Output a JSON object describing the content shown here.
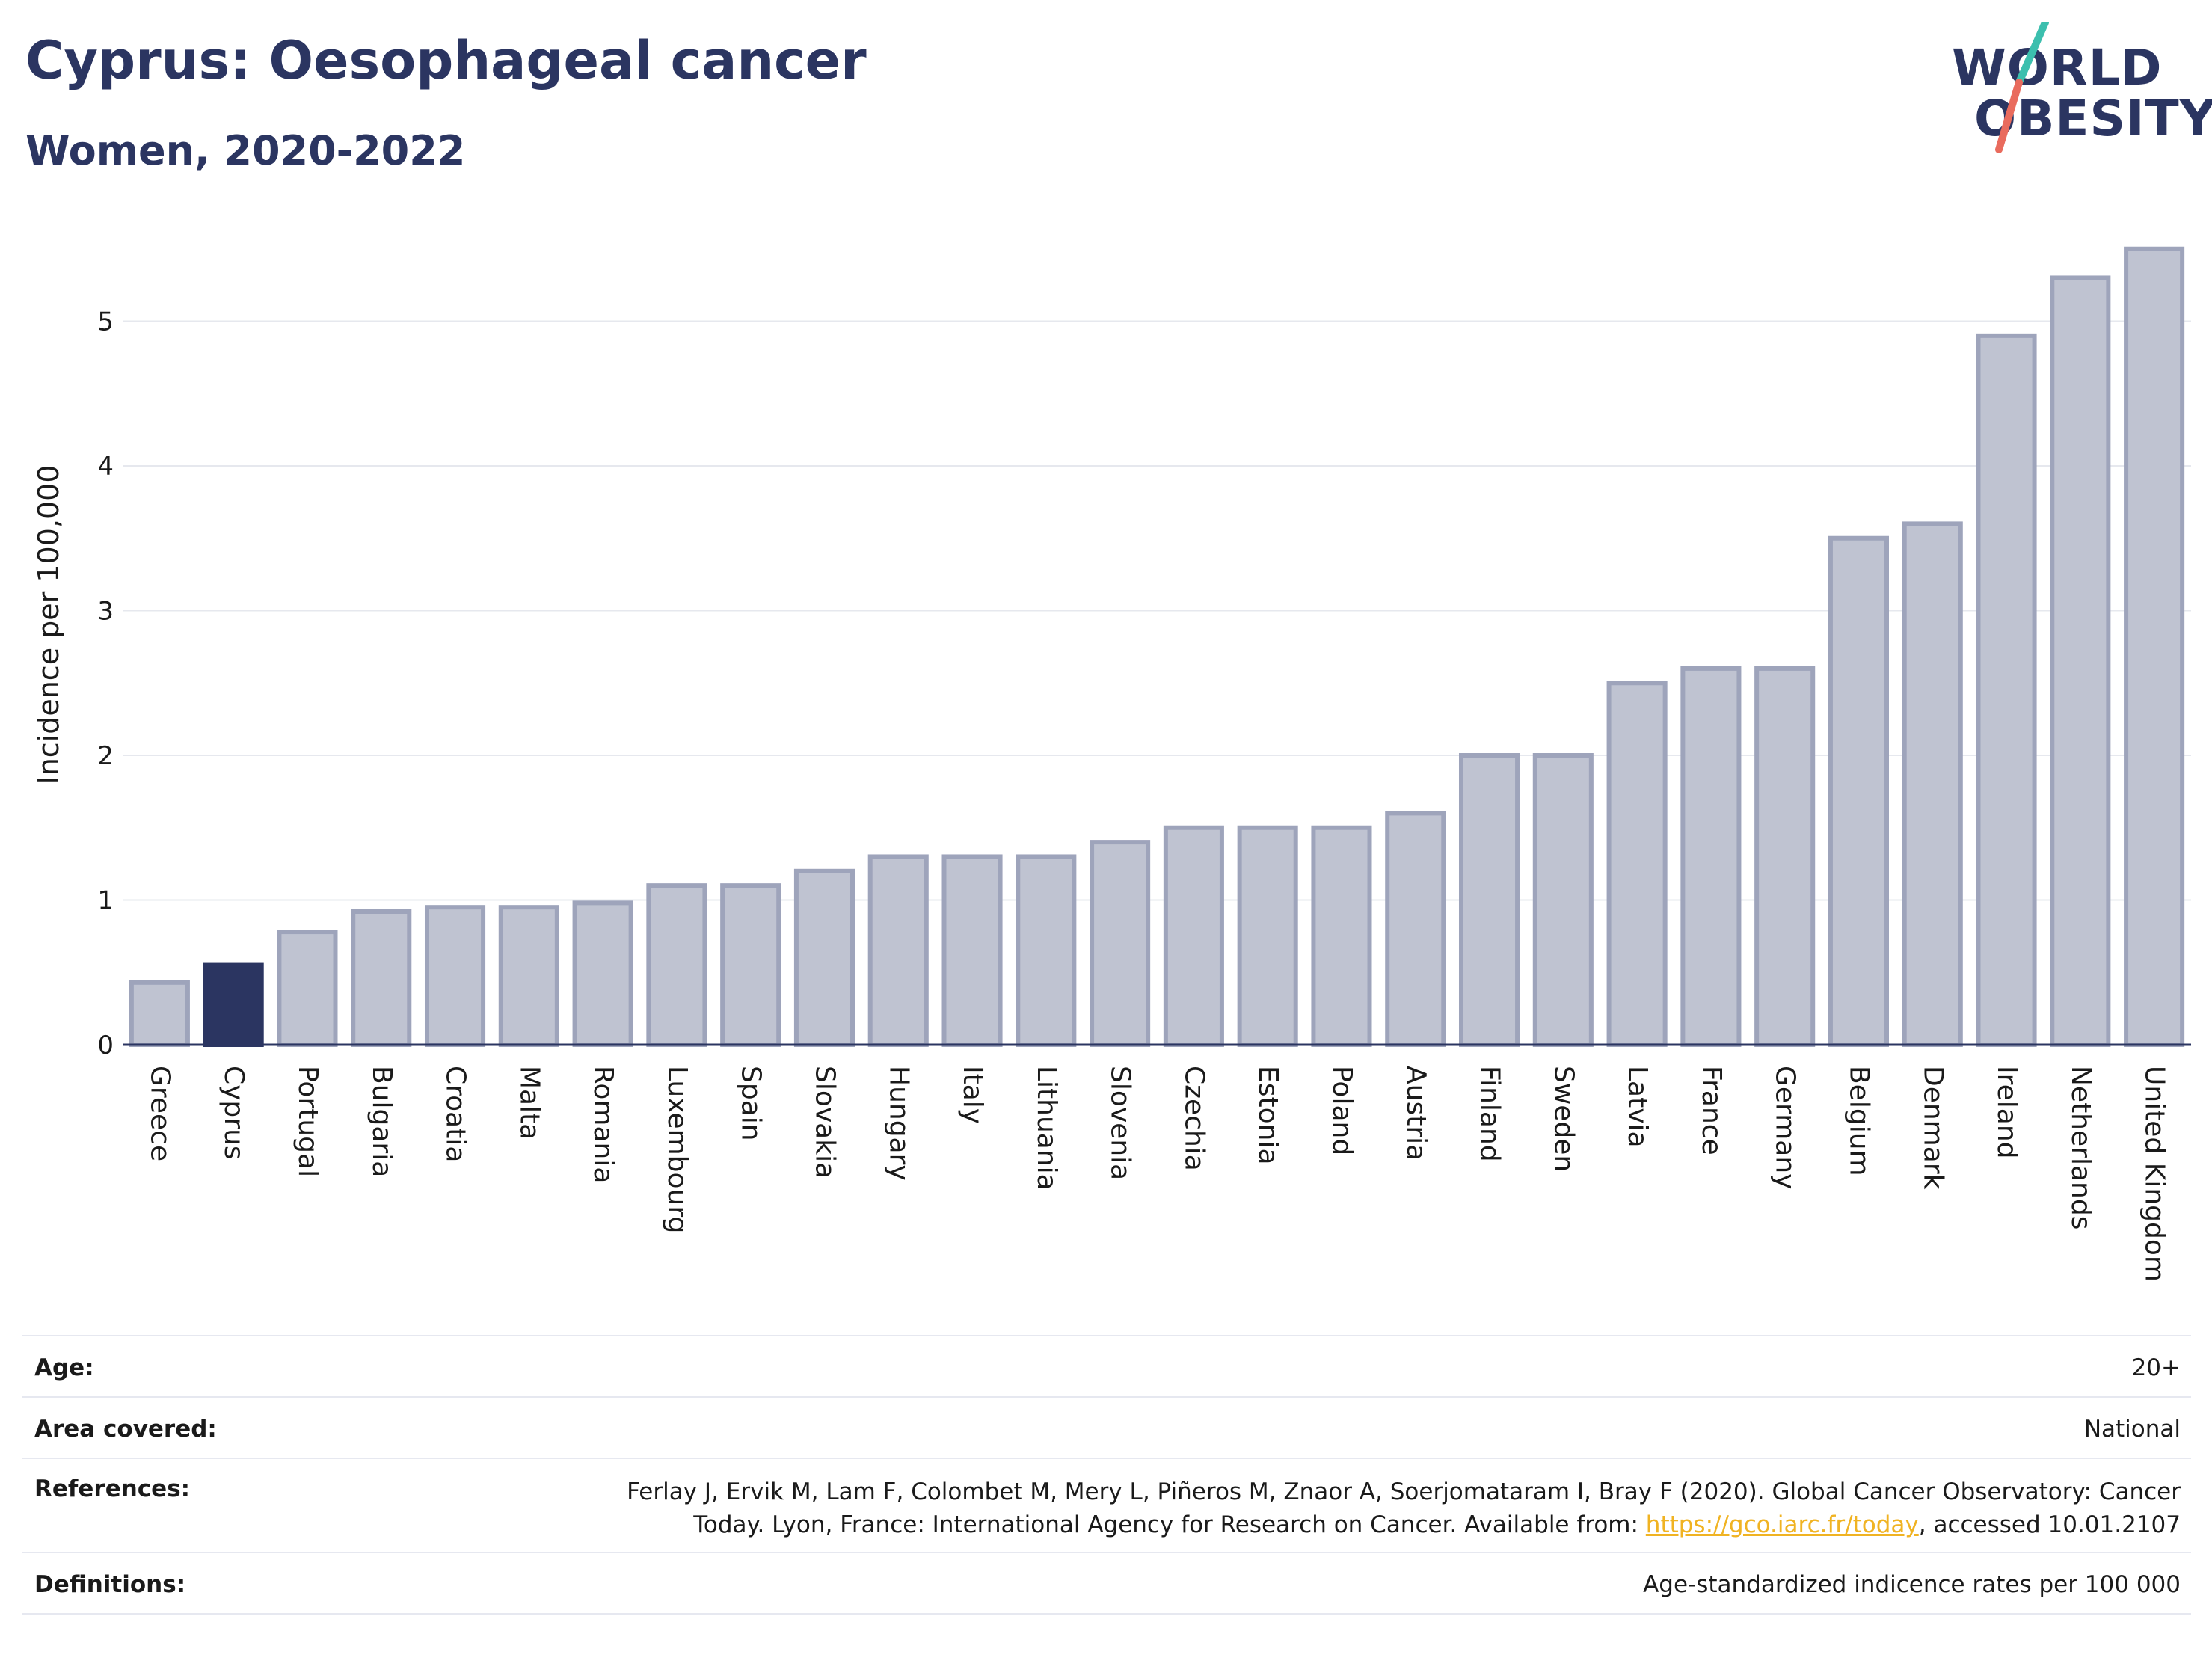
{
  "header": {
    "title": "Cyprus: Oesophageal cancer",
    "subtitle": "Women, 2020-2022"
  },
  "logo": {
    "line1": "WORLD",
    "line2": "OBESITY",
    "colors": {
      "text": "#2b3561",
      "slash_top": "#3cbfae",
      "slash_bottom": "#e96b5d"
    }
  },
  "colors": {
    "bar": "#bfc3d1",
    "bar_border": "#9ea4bb",
    "highlight": "#2b3561",
    "grid": "#e6e8ee",
    "axis": "#2b3561"
  },
  "chart_data": {
    "type": "bar",
    "ylabel": "Incidence per 100,000",
    "xlabel": "",
    "ylim": [
      0,
      5.6
    ],
    "yticks": [
      0,
      1,
      2,
      3,
      4,
      5
    ],
    "grid": true,
    "highlight_category": "Cyprus",
    "categories": [
      "Greece",
      "Cyprus",
      "Portugal",
      "Bulgaria",
      "Croatia",
      "Malta",
      "Romania",
      "Luxembourg",
      "Spain",
      "Slovakia",
      "Hungary",
      "Italy",
      "Lithuania",
      "Slovenia",
      "Czechia",
      "Estonia",
      "Poland",
      "Austria",
      "Finland",
      "Sweden",
      "Latvia",
      "France",
      "Germany",
      "Belgium",
      "Denmark",
      "Ireland",
      "Netherlands",
      "United Kingdom"
    ],
    "values": [
      0.43,
      0.55,
      0.78,
      0.92,
      0.95,
      0.95,
      0.98,
      1.1,
      1.1,
      1.2,
      1.3,
      1.3,
      1.3,
      1.4,
      1.5,
      1.5,
      1.5,
      1.6,
      2.0,
      2.0,
      2.5,
      2.6,
      2.6,
      3.5,
      3.6,
      4.9,
      5.3,
      5.5
    ]
  },
  "info": {
    "age_label": "Age:",
    "age_value": "20+",
    "area_label": "Area covered:",
    "area_value": "National",
    "references_label": "References:",
    "references_line1": "Ferlay J, Ervik M, Lam F, Colombet M, Mery L, Piñeros M, Znaor A, Soerjomataram I, Bray F (2020). Global Cancer Observatory: Cancer",
    "references_line2_prefix": "Today. Lyon, France: International Agency for Research on Cancer. Available from: ",
    "references_link": "https://gco.iarc.fr/today",
    "references_line2_suffix": ", accessed 10.01.2107",
    "definitions_label": "Definitions:",
    "definitions_value": "Age-standardized indicence rates per 100 000"
  }
}
